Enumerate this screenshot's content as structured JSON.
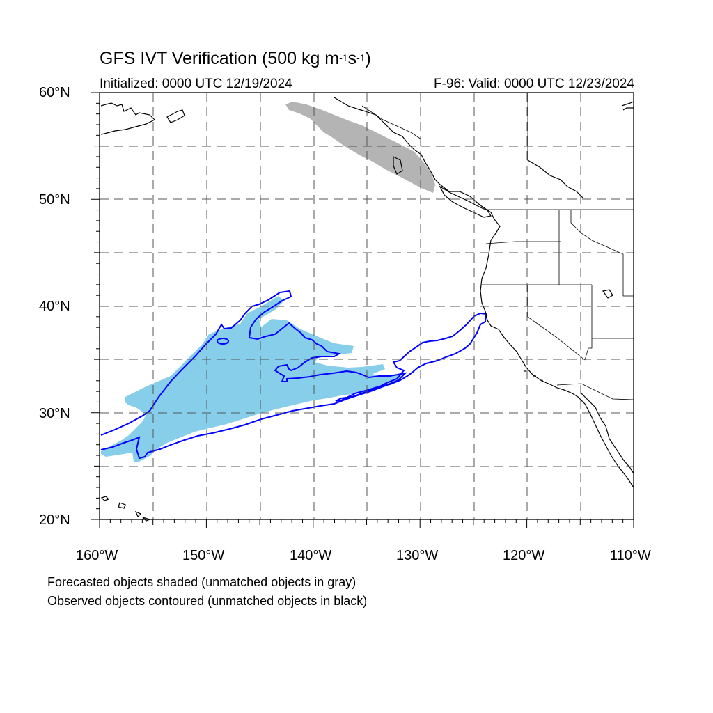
{
  "title": {
    "main": "GFS IVT Verification (500 kg m",
    "exp1": "-1",
    "mid": "s",
    "exp2": "-1",
    "close": ")"
  },
  "initialized": "Initialized: 0000 UTC 12/19/2024",
  "valid": "F-96: Valid: 0000 UTC 12/23/2024",
  "lat_labels": [
    "60°N",
    "50°N",
    "40°N",
    "30°N",
    "20°N"
  ],
  "lon_labels": [
    "160°W",
    "150°W",
    "140°W",
    "130°W",
    "120°W",
    "110°W"
  ],
  "notes": [
    "Forecasted objects shaded (unmatched objects in gray)",
    "Observed objects contoured (unmatched objects in black)"
  ],
  "map": {
    "lon_range": [
      -160,
      -110
    ],
    "lat_range": [
      20,
      60
    ],
    "grid": "dashed, every 5 degrees",
    "colors": {
      "forecast_matched": "#87ceeb",
      "forecast_unmatched": "#b4b4b4",
      "observed_matched": "#0000ff",
      "coastline": "#000000"
    }
  }
}
